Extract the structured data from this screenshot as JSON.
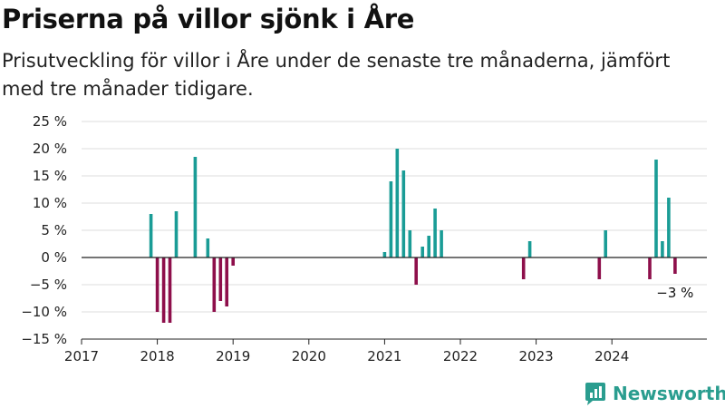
{
  "header": {
    "title": "Priserna på villor sjönk i Åre",
    "subtitle": "Prisutveckling för villor i Åre under de senaste tre månaderna, jämfört med tre månader tidigare."
  },
  "brand": {
    "name": "Newsworthy"
  },
  "colors": {
    "positive": "#1a9c96",
    "negative": "#8e0f4b"
  },
  "chart_data": {
    "type": "bar",
    "title": "Priserna på villor sjönk i Åre",
    "ylim": [
      -15,
      25
    ],
    "xlim": [
      2017,
      2025.25
    ],
    "y_ticks": [
      25,
      20,
      15,
      10,
      5,
      0,
      -5,
      -10,
      -15
    ],
    "y_tick_labels": [
      "25 %",
      "20 %",
      "15 %",
      "10 %",
      "5 %",
      "0 %",
      "−5 %",
      "−10 %",
      "−15 %"
    ],
    "x_ticks": [
      2017,
      2018,
      2019,
      2020,
      2021,
      2022,
      2023,
      2024
    ],
    "x_tick_labels": [
      "2017",
      "2018",
      "2019",
      "2020",
      "2021",
      "2022",
      "2023",
      "2024"
    ],
    "grid": true,
    "series": [
      {
        "points": [
          {
            "x": "2017-12",
            "y": 8
          },
          {
            "x": "2018-01",
            "y": -10
          },
          {
            "x": "2018-02",
            "y": -12
          },
          {
            "x": "2018-03",
            "y": -12
          },
          {
            "x": "2018-04",
            "y": 8.5
          },
          {
            "x": "2018-07",
            "y": 18.5
          },
          {
            "x": "2018-09",
            "y": 3.5
          },
          {
            "x": "2018-10",
            "y": -10
          },
          {
            "x": "2018-11",
            "y": -8
          },
          {
            "x": "2018-12",
            "y": -9
          },
          {
            "x": "2019-01",
            "y": -1.5
          },
          {
            "x": "2021-01",
            "y": 1
          },
          {
            "x": "2021-02",
            "y": 14
          },
          {
            "x": "2021-03",
            "y": 20
          },
          {
            "x": "2021-04",
            "y": 16
          },
          {
            "x": "2021-05",
            "y": 5
          },
          {
            "x": "2021-06",
            "y": -5
          },
          {
            "x": "2021-07",
            "y": 2
          },
          {
            "x": "2021-08",
            "y": 4
          },
          {
            "x": "2021-09",
            "y": 9
          },
          {
            "x": "2021-10",
            "y": 5
          },
          {
            "x": "2022-11",
            "y": -4
          },
          {
            "x": "2022-12",
            "y": 3
          },
          {
            "x": "2023-11",
            "y": -4
          },
          {
            "x": "2023-12",
            "y": 5
          },
          {
            "x": "2024-07",
            "y": -4
          },
          {
            "x": "2024-08",
            "y": 18
          },
          {
            "x": "2024-09",
            "y": 3
          },
          {
            "x": "2024-10",
            "y": 11
          },
          {
            "x": "2024-11",
            "y": -3
          }
        ]
      }
    ],
    "annotations": [
      {
        "text": "−3 %",
        "x": "2024-11",
        "y": -3
      }
    ]
  }
}
